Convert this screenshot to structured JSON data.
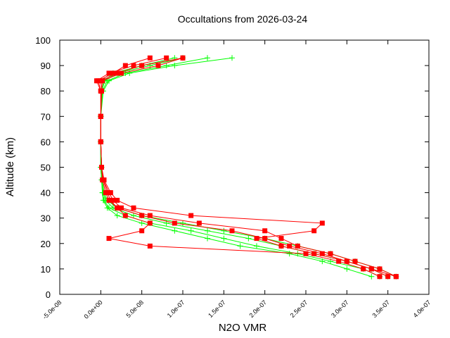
{
  "chart_data": {
    "type": "line",
    "title": "Occultations from 2026-03-24",
    "xlabel": "N2O VMR",
    "ylabel": "Altitude (km)",
    "xlim": [
      -5e-08,
      4e-07
    ],
    "ylim": [
      0,
      100
    ],
    "grid": false,
    "x_tick_labels": [
      "-5.0e-08",
      "0.0e+00",
      "5.0e-08",
      "1.0e-07",
      "1.5e-07",
      "2.0e-07",
      "2.5e-07",
      "3.0e-07",
      "3.5e-07",
      "4.0e-07"
    ],
    "x_ticks": [
      -5e-08,
      0,
      5e-08,
      1e-07,
      1.5e-07,
      2e-07,
      2.5e-07,
      3e-07,
      3.5e-07,
      4e-07
    ],
    "y_ticks": [
      0,
      10,
      20,
      30,
      40,
      50,
      60,
      70,
      80,
      90,
      100
    ],
    "altitudes": [
      7,
      10,
      13,
      16,
      19,
      22,
      25,
      28,
      31,
      34,
      37,
      40,
      45,
      50,
      60,
      70,
      80,
      84,
      87,
      90,
      93
    ],
    "colors": {
      "green": "#00ff00",
      "red": "#ff0000"
    },
    "series": [
      {
        "color": "green",
        "marker": "plus",
        "values": [
          3.5e-07,
          3.3e-07,
          3e-07,
          2.6e-07,
          2.2e-07,
          1.8e-07,
          1.3e-07,
          8e-08,
          4e-08,
          1.5e-08,
          6e-09,
          3e-09,
          1e-09,
          0,
          0,
          0,
          2e-09,
          8e-09,
          3e-08,
          8e-08,
          1.3e-07
        ]
      },
      {
        "color": "green",
        "marker": "plus",
        "values": [
          3.4e-07,
          3.2e-07,
          2.8e-07,
          2.4e-07,
          1.9e-07,
          1.5e-07,
          1.1e-07,
          6e-08,
          3e-08,
          1e-08,
          4e-09,
          2e-09,
          1e-09,
          0,
          0,
          0,
          1e-09,
          5e-09,
          2e-08,
          6e-08,
          1e-07
        ]
      },
      {
        "color": "green",
        "marker": "plus",
        "values": [
          3.6e-07,
          3.4e-07,
          3.1e-07,
          2.8e-07,
          2.4e-07,
          2e-07,
          1.5e-07,
          1e-07,
          5e-08,
          2e-08,
          8e-09,
          4e-09,
          2e-09,
          1e-09,
          0,
          0,
          3e-09,
          1e-08,
          3.5e-08,
          9e-08,
          1.6e-07
        ]
      },
      {
        "color": "green",
        "marker": "plus",
        "values": [
          3.3e-07,
          3e-07,
          2.7e-07,
          2.3e-07,
          1.7e-07,
          1.3e-07,
          9e-08,
          5e-08,
          2e-08,
          8e-09,
          3e-09,
          2e-09,
          1e-09,
          0,
          0,
          0,
          1e-09,
          4e-09,
          1.5e-08,
          5e-08,
          9e-08
        ]
      },
      {
        "color": "red",
        "marker": "square",
        "values": [
          3.6e-07,
          3.4e-07,
          3.1e-07,
          2.8e-07,
          2.4e-07,
          2.2e-07,
          2e-07,
          1.2e-07,
          6e-08,
          2.5e-08,
          1.5e-08,
          1e-08,
          3e-09,
          1e-09,
          0,
          0,
          0,
          -5e-09,
          1e-08,
          4e-08,
          8e-08
        ]
      },
      {
        "color": "red",
        "marker": "square",
        "values": [
          3.5e-07,
          3.3e-07,
          3e-07,
          2.6e-07,
          2.2e-07,
          1.9e-07,
          2.6e-07,
          2.7e-07,
          1.1e-07,
          4e-08,
          2e-08,
          1.2e-08,
          4e-09,
          1e-09,
          0,
          0,
          1e-09,
          0,
          2e-08,
          5e-08,
          1e-07
        ]
      },
      {
        "color": "red",
        "marker": "square",
        "values": [
          3.4e-07,
          3.2e-07,
          2.9e-07,
          2.5e-07,
          6e-08,
          1e-08,
          5e-08,
          6e-08,
          3e-08,
          2e-08,
          1.2e-08,
          8e-09,
          3e-09,
          1e-09,
          0,
          0,
          0,
          -3e-09,
          1.5e-08,
          3e-08,
          6e-08
        ]
      },
      {
        "color": "red",
        "marker": "square",
        "values": [
          3.6e-07,
          3.3e-07,
          3e-07,
          2.7e-07,
          2.3e-07,
          2e-07,
          1.6e-07,
          9e-08,
          5e-08,
          2e-08,
          1e-08,
          6e-09,
          2e-09,
          1e-09,
          0,
          0,
          1e-09,
          2e-09,
          2.5e-08,
          7e-08,
          1e-07
        ]
      }
    ]
  }
}
